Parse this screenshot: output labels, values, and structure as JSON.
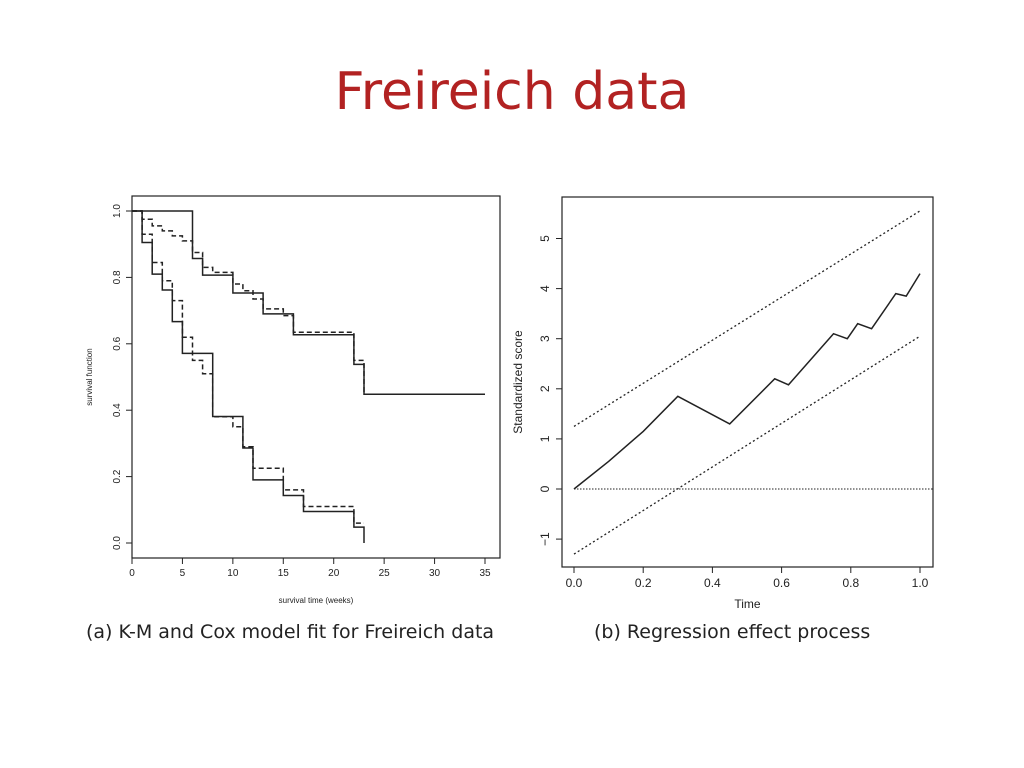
{
  "slide": {
    "title": "Freireich data"
  },
  "chart_data": [
    {
      "type": "line",
      "caption": "(a) K-M and Cox model fit for Freireich data",
      "xlabel": "survival time (weeks)",
      "ylabel": "survival function",
      "xlim": [
        0,
        35
      ],
      "ylim": [
        0,
        1
      ],
      "xticks": [
        0,
        5,
        10,
        15,
        20,
        25,
        30,
        35
      ],
      "yticks": [
        0.0,
        0.2,
        0.4,
        0.6,
        0.8,
        1.0
      ],
      "step": true,
      "series": [
        {
          "style": "solid",
          "points": [
            [
              0,
              1.0
            ],
            [
              6,
              1.0
            ],
            [
              6,
              0.857
            ],
            [
              7,
              0.857
            ],
            [
              7,
              0.807
            ],
            [
              10,
              0.807
            ],
            [
              10,
              0.753
            ],
            [
              13,
              0.753
            ],
            [
              13,
              0.69
            ],
            [
              16,
              0.69
            ],
            [
              16,
              0.627
            ],
            [
              22,
              0.627
            ],
            [
              22,
              0.538
            ],
            [
              23,
              0.538
            ],
            [
              23,
              0.448
            ],
            [
              35,
              0.448
            ]
          ]
        },
        {
          "style": "dashed",
          "points": [
            [
              0,
              1.0
            ],
            [
              1,
              1.0
            ],
            [
              1,
              0.975
            ],
            [
              2,
              0.975
            ],
            [
              2,
              0.955
            ],
            [
              3,
              0.955
            ],
            [
              3,
              0.94
            ],
            [
              4,
              0.94
            ],
            [
              4,
              0.925
            ],
            [
              5,
              0.925
            ],
            [
              5,
              0.91
            ],
            [
              6,
              0.91
            ],
            [
              6,
              0.875
            ],
            [
              7,
              0.875
            ],
            [
              7,
              0.83
            ],
            [
              8,
              0.83
            ],
            [
              8,
              0.815
            ],
            [
              10,
              0.815
            ],
            [
              10,
              0.78
            ],
            [
              11,
              0.78
            ],
            [
              11,
              0.76
            ],
            [
              12,
              0.76
            ],
            [
              12,
              0.735
            ],
            [
              13,
              0.735
            ],
            [
              13,
              0.705
            ],
            [
              15,
              0.705
            ],
            [
              15,
              0.685
            ],
            [
              16,
              0.685
            ],
            [
              16,
              0.635
            ],
            [
              22,
              0.635
            ],
            [
              22,
              0.55
            ],
            [
              23,
              0.55
            ],
            [
              23,
              0.448
            ]
          ]
        },
        {
          "style": "solid",
          "points": [
            [
              0,
              1.0
            ],
            [
              1,
              1.0
            ],
            [
              1,
              0.905
            ],
            [
              2,
              0.905
            ],
            [
              2,
              0.81
            ],
            [
              3,
              0.81
            ],
            [
              3,
              0.762
            ],
            [
              4,
              0.762
            ],
            [
              4,
              0.667
            ],
            [
              5,
              0.667
            ],
            [
              5,
              0.571
            ],
            [
              8,
              0.571
            ],
            [
              8,
              0.381
            ],
            [
              11,
              0.381
            ],
            [
              11,
              0.286
            ],
            [
              12,
              0.286
            ],
            [
              12,
              0.19
            ],
            [
              15,
              0.19
            ],
            [
              15,
              0.143
            ],
            [
              17,
              0.143
            ],
            [
              17,
              0.095
            ],
            [
              22,
              0.095
            ],
            [
              22,
              0.048
            ],
            [
              23,
              0.048
            ],
            [
              23,
              0.0
            ]
          ]
        },
        {
          "style": "dashed",
          "points": [
            [
              0,
              1.0
            ],
            [
              1,
              1.0
            ],
            [
              1,
              0.93
            ],
            [
              2,
              0.93
            ],
            [
              2,
              0.845
            ],
            [
              3,
              0.845
            ],
            [
              3,
              0.79
            ],
            [
              4,
              0.79
            ],
            [
              4,
              0.73
            ],
            [
              5,
              0.73
            ],
            [
              5,
              0.62
            ],
            [
              6,
              0.62
            ],
            [
              6,
              0.55
            ],
            [
              7,
              0.55
            ],
            [
              7,
              0.51
            ],
            [
              8,
              0.51
            ],
            [
              8,
              0.38
            ],
            [
              10,
              0.38
            ],
            [
              10,
              0.35
            ],
            [
              11,
              0.35
            ],
            [
              11,
              0.29
            ],
            [
              12,
              0.29
            ],
            [
              12,
              0.225
            ],
            [
              15,
              0.225
            ],
            [
              15,
              0.16
            ],
            [
              17,
              0.16
            ],
            [
              17,
              0.11
            ],
            [
              22,
              0.11
            ],
            [
              22,
              0.06
            ],
            [
              23,
              0.06
            ]
          ]
        }
      ]
    },
    {
      "type": "line",
      "caption": "(b) Regression effect process",
      "xlabel": "Time",
      "ylabel": "Standardized score",
      "xlim": [
        0,
        1
      ],
      "ylim": [
        -1.5,
        5.8
      ],
      "xticks": [
        0.0,
        0.2,
        0.4,
        0.6,
        0.8,
        1.0
      ],
      "yticks": [
        -1,
        0,
        1,
        2,
        3,
        4,
        5
      ],
      "series": [
        {
          "style": "solid",
          "points": [
            [
              0,
              0
            ],
            [
              0.1,
              0.55
            ],
            [
              0.2,
              1.15
            ],
            [
              0.3,
              1.85
            ],
            [
              0.45,
              1.3
            ],
            [
              0.58,
              2.2
            ],
            [
              0.62,
              2.08
            ],
            [
              0.75,
              3.1
            ],
            [
              0.79,
              3.0
            ],
            [
              0.82,
              3.3
            ],
            [
              0.86,
              3.2
            ],
            [
              0.93,
              3.9
            ],
            [
              0.96,
              3.85
            ],
            [
              1.0,
              4.3
            ]
          ]
        },
        {
          "style": "dotted",
          "points": [
            [
              0,
              1.25
            ],
            [
              1.0,
              5.55
            ]
          ]
        },
        {
          "style": "dotted",
          "points": [
            [
              0,
              -1.3
            ],
            [
              1.0,
              3.05
            ]
          ]
        },
        {
          "style": "dotted-fine",
          "points": [
            [
              0,
              0
            ],
            [
              1.1,
              0
            ]
          ]
        }
      ]
    }
  ]
}
